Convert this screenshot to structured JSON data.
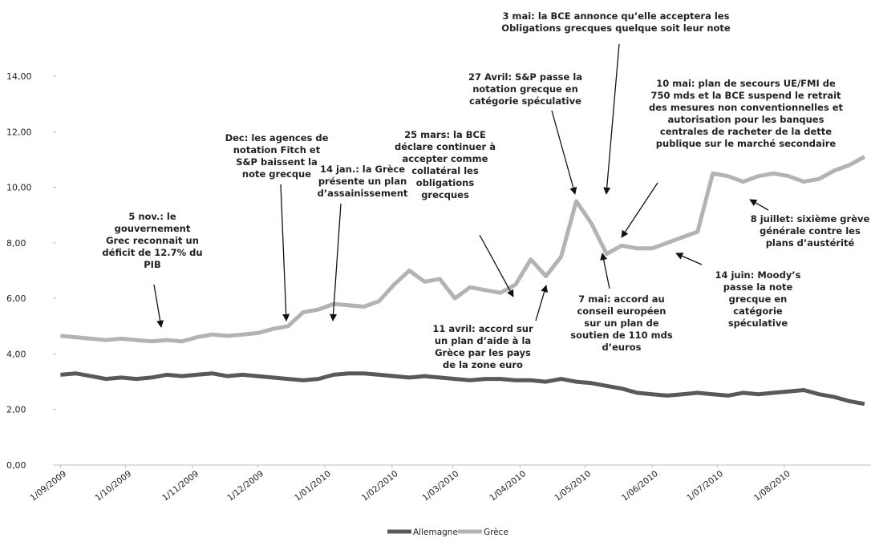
{
  "chart_data": {
    "type": "line",
    "x": [
      "2009-09-01",
      "2009-09-08",
      "2009-09-15",
      "2009-09-22",
      "2009-09-29",
      "2009-10-06",
      "2009-10-13",
      "2009-10-20",
      "2009-10-27",
      "2009-11-03",
      "2009-11-10",
      "2009-11-17",
      "2009-11-24",
      "2009-12-01",
      "2009-12-08",
      "2009-12-15",
      "2009-12-22",
      "2009-12-29",
      "2010-01-05",
      "2010-01-12",
      "2010-01-19",
      "2010-01-26",
      "2010-02-02",
      "2010-02-09",
      "2010-02-16",
      "2010-02-23",
      "2010-03-02",
      "2010-03-09",
      "2010-03-16",
      "2010-03-23",
      "2010-03-30",
      "2010-04-06",
      "2010-04-13",
      "2010-04-20",
      "2010-04-27",
      "2010-05-04",
      "2010-05-11",
      "2010-05-18",
      "2010-05-25",
      "2010-06-01",
      "2010-06-08",
      "2010-06-15",
      "2010-06-22",
      "2010-06-29",
      "2010-07-06",
      "2010-07-13",
      "2010-07-20",
      "2010-07-27",
      "2010-08-03",
      "2010-08-10",
      "2010-08-17",
      "2010-08-24",
      "2010-08-31",
      "2010-09-07"
    ],
    "series": [
      {
        "name": "Allemagne",
        "color": "#595959",
        "values": [
          3.25,
          3.3,
          3.2,
          3.1,
          3.15,
          3.1,
          3.15,
          3.25,
          3.2,
          3.25,
          3.3,
          3.2,
          3.25,
          3.2,
          3.15,
          3.1,
          3.05,
          3.1,
          3.25,
          3.3,
          3.3,
          3.25,
          3.2,
          3.15,
          3.2,
          3.15,
          3.1,
          3.05,
          3.1,
          3.1,
          3.05,
          3.05,
          3.0,
          3.1,
          3.0,
          2.95,
          2.85,
          2.75,
          2.6,
          2.55,
          2.5,
          2.55,
          2.6,
          2.55,
          2.5,
          2.6,
          2.55,
          2.6,
          2.65,
          2.7,
          2.55,
          2.45,
          2.3,
          2.2
        ]
      },
      {
        "name": "Grèce",
        "color": "#b3b3b3",
        "values": [
          4.65,
          4.6,
          4.55,
          4.5,
          4.55,
          4.5,
          4.45,
          4.5,
          4.45,
          4.6,
          4.7,
          4.65,
          4.7,
          4.75,
          4.9,
          5.0,
          5.5,
          5.6,
          5.8,
          5.75,
          5.7,
          5.9,
          6.5,
          7.0,
          6.6,
          6.7,
          6.0,
          6.4,
          6.3,
          6.2,
          6.5,
          7.4,
          6.8,
          7.5,
          9.5,
          8.7,
          7.6,
          7.9,
          7.8,
          7.8,
          8.0,
          8.2,
          8.4,
          10.5,
          10.4,
          10.2,
          10.4,
          10.5,
          10.4,
          10.2,
          10.3,
          10.6,
          10.8,
          11.1
        ]
      }
    ],
    "xlim": [
      "2009-08-30",
      "2010-09-10"
    ],
    "xticks": [
      {
        "value": "2009-09-01",
        "label": "1/09/2009"
      },
      {
        "value": "2009-10-01",
        "label": "1/10/2009"
      },
      {
        "value": "2009-11-01",
        "label": "1/11/2009"
      },
      {
        "value": "2009-12-01",
        "label": "1/12/2009"
      },
      {
        "value": "2010-01-01",
        "label": "1/01/2010"
      },
      {
        "value": "2010-02-01",
        "label": "1/02/2010"
      },
      {
        "value": "2010-03-01",
        "label": "1/03/2010"
      },
      {
        "value": "2010-04-01",
        "label": "1/04/2010"
      },
      {
        "value": "2010-05-01",
        "label": "1/05/2010"
      },
      {
        "value": "2010-06-01",
        "label": "1/06/2010"
      },
      {
        "value": "2010-07-01",
        "label": "1/07/2010"
      },
      {
        "value": "2010-08-01",
        "label": "1/08/2010"
      }
    ],
    "ylim": [
      0,
      14
    ],
    "yticks": [
      {
        "value": 0,
        "label": "0,00"
      },
      {
        "value": 2,
        "label": "2,00"
      },
      {
        "value": 4,
        "label": "4,00"
      },
      {
        "value": 6,
        "label": "6,00"
      },
      {
        "value": 8,
        "label": "8,00"
      },
      {
        "value": 10,
        "label": "10,00"
      },
      {
        "value": 12,
        "label": "12,00"
      },
      {
        "value": 14,
        "label": "14,00"
      }
    ],
    "legend": "bottom",
    "annotations": [
      [
        "5 nov.: le",
        "gouvernement",
        "Grec reconnait un",
        "déficit de 12.7% du",
        "PIB"
      ],
      [
        "Dec: les agences de",
        "notation Fitch et",
        "S&P baissent la",
        "note grecque"
      ],
      [
        "14 jan.: la Grèce",
        "présente un plan",
        "d’assainissement"
      ],
      [
        "25 mars: la BCE",
        "déclare continuer à",
        "accepter comme",
        "collatéral les",
        "obligations",
        "grecques"
      ],
      [
        "27 Avril: S&P passe la",
        "notation grecque en",
        "catégorie spéculative"
      ],
      [
        "3 mai: la BCE annonce qu’elle acceptera les",
        "Obligations grecques quelque soit leur note"
      ],
      [
        "10 mai: plan de secours UE/FMI de",
        "750 mds et la BCE suspend le retrait",
        "des mesures non conventionnelles et",
        "autorisation pour les banques",
        "centrales de racheter de la dette",
        "publique sur le marché secondaire"
      ],
      [
        "11 avril: accord sur",
        "un plan d’aide à la",
        "Grèce par les pays",
        "de la zone euro"
      ],
      [
        "7 mai: accord au",
        "conseil européen",
        "sur un plan de",
        "soutien de 110 mds",
        "d’euros"
      ],
      [
        "14 juin: Moody’s",
        "passe la note",
        "grecque en",
        "catégorie",
        "spéculative"
      ],
      [
        "8 juillet: sixième grève",
        "générale contre les",
        "plans d’austérité"
      ]
    ]
  }
}
